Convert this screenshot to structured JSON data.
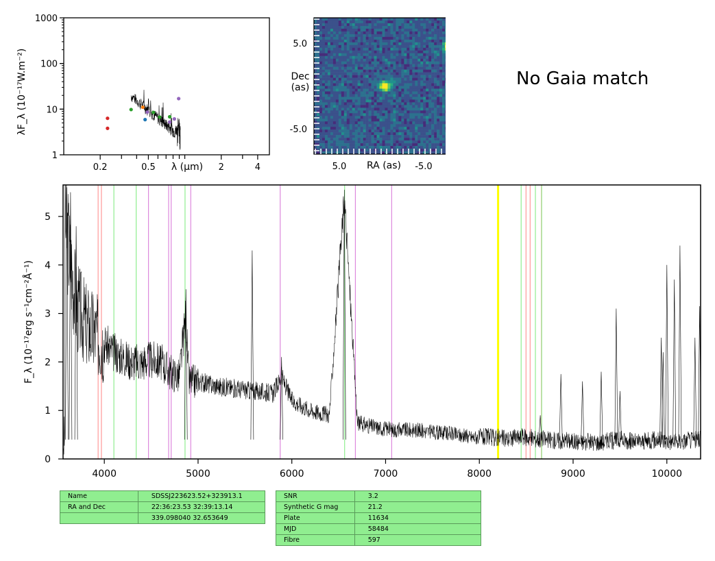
{
  "sed": {
    "ylabel": "λF_λ (10⁻¹⁷W.m⁻²)",
    "xlabel": "λ (μm)",
    "xticks": [
      {
        "v": 0.2,
        "label": "0.2"
      },
      {
        "v": 0.5,
        "label": "0.5"
      },
      {
        "v": 2,
        "label": "2"
      },
      {
        "v": 4,
        "label": "4"
      }
    ],
    "yticks": [
      {
        "v": 1,
        "label": "1"
      },
      {
        "v": 10,
        "label": "10"
      },
      {
        "v": 100,
        "label": "100"
      },
      {
        "v": 1000,
        "label": "1000"
      }
    ],
    "xlim": [
      0.1,
      5
    ],
    "ylim": [
      1,
      1000
    ],
    "log": true,
    "points": [
      {
        "x": 0.23,
        "y": 6.3,
        "color": "#d62728"
      },
      {
        "x": 0.23,
        "y": 3.8,
        "color": "#d62728"
      },
      {
        "x": 0.36,
        "y": 9.8,
        "color": "#2ca02c"
      },
      {
        "x": 0.45,
        "y": 11.0,
        "color": "#ff7f0e"
      },
      {
        "x": 0.49,
        "y": 8.6,
        "color": "#9467bd"
      },
      {
        "x": 0.47,
        "y": 5.9,
        "color": "#1f77b4"
      },
      {
        "x": 0.55,
        "y": 8.5,
        "color": "#2ca02c"
      },
      {
        "x": 0.62,
        "y": 6.7,
        "color": "#2ca02c"
      },
      {
        "x": 0.75,
        "y": 6.8,
        "color": "#2ca02c"
      },
      {
        "x": 0.75,
        "y": 5.2,
        "color": "#9467bd"
      },
      {
        "x": 0.82,
        "y": 6.1,
        "color": "#9467bd"
      },
      {
        "x": 0.89,
        "y": 17.0,
        "color": "#9467bd"
      }
    ]
  },
  "image_panel": {
    "xlabel": "RA (as)",
    "ylabel": "Dec\n(as)",
    "xticks": [
      "5.0",
      "-5.0"
    ],
    "yticks": [
      "5.0",
      "-5.0"
    ],
    "colormap": "viridis"
  },
  "gaia_text": "No Gaia match",
  "chart_data": {
    "type": "line",
    "xlabel": "",
    "ylabel": "F_λ (10⁻¹⁷erg s⁻¹cm⁻²Å⁻¹)",
    "xlim": [
      3560,
      10360
    ],
    "ylim": [
      0,
      5.65
    ],
    "xticks": [
      4000,
      5000,
      6000,
      7000,
      8000,
      9000,
      10000
    ],
    "yticks": [
      0,
      1,
      2,
      3,
      4,
      5
    ],
    "series": [
      {
        "x": [
          3580,
          3700,
          3800,
          3900,
          4000,
          4100,
          4200,
          4300,
          4400,
          4500,
          4600,
          4700,
          4800,
          4870,
          4900,
          5000,
          5200,
          5400,
          5600,
          5800,
          5890,
          6000,
          6200,
          6400,
          6560,
          6700,
          6900,
          7100,
          7300,
          7500,
          7700,
          7900,
          8100,
          8300,
          8500,
          8700,
          8900,
          9100,
          9300,
          9500,
          9700,
          9900,
          10100,
          10300
        ],
        "y": [
          5.0,
          3.2,
          2.8,
          2.6,
          2.4,
          2.2,
          2.1,
          2.0,
          2.0,
          2.05,
          2.0,
          1.8,
          1.7,
          3.0,
          1.6,
          1.6,
          1.5,
          1.45,
          1.4,
          1.35,
          1.7,
          1.2,
          1.0,
          0.9,
          5.4,
          0.75,
          0.65,
          0.6,
          0.6,
          0.55,
          0.52,
          0.45,
          0.45,
          0.42,
          0.45,
          0.4,
          0.38,
          0.35,
          0.35,
          0.4,
          0.35,
          0.4,
          0.35,
          0.4
        ]
      }
    ],
    "spikes": [
      [
        3600,
        5.6
      ],
      [
        3640,
        5.5
      ],
      [
        3700,
        4.8
      ],
      [
        4870,
        3.5
      ],
      [
        5577,
        4.3
      ],
      [
        5890,
        2.1
      ],
      [
        6560,
        5.55
      ],
      [
        9460,
        3.1
      ],
      [
        9940,
        2.5
      ],
      [
        9960,
        2.2
      ],
      [
        10000,
        4.0
      ],
      [
        10080,
        3.7
      ],
      [
        10140,
        4.4
      ],
      [
        10300,
        2.5
      ],
      [
        10350,
        3.15
      ],
      [
        8650,
        0.9
      ],
      [
        8870,
        1.75
      ],
      [
        9100,
        1.6
      ],
      [
        9300,
        1.8
      ],
      [
        9500,
        1.4
      ]
    ],
    "lines": [
      {
        "x": 3934,
        "color": "#ff9999"
      },
      {
        "x": 3969,
        "color": "#ff9999"
      },
      {
        "x": 4102,
        "color": "#90ee90"
      },
      {
        "x": 4340,
        "color": "#90ee90"
      },
      {
        "x": 4471,
        "color": "#dd88dd"
      },
      {
        "x": 4686,
        "color": "#dd88dd"
      },
      {
        "x": 4713,
        "color": "#dd88dd"
      },
      {
        "x": 4861,
        "color": "#90ee90"
      },
      {
        "x": 4922,
        "color": "#dd88dd"
      },
      {
        "x": 5876,
        "color": "#dd88dd"
      },
      {
        "x": 6563,
        "color": "#90ee90"
      },
      {
        "x": 6678,
        "color": "#dd88dd"
      },
      {
        "x": 7065,
        "color": "#dd88dd"
      },
      {
        "x": 8200,
        "color": "#ffff00",
        "width": 3
      },
      {
        "x": 8446,
        "color": "#90ee90"
      },
      {
        "x": 8498,
        "color": "#ff9999"
      },
      {
        "x": 8542,
        "color": "#ff9999"
      },
      {
        "x": 8598,
        "color": "#90ee90"
      },
      {
        "x": 8662,
        "color": "#ff9999"
      },
      {
        "x": 8665,
        "color": "#90ee90"
      }
    ]
  },
  "table1": [
    [
      "Name",
      "SDSSJ223623.52+323913.1"
    ],
    [
      "RA and Dec",
      "22:36:23.53    32:39:13.14"
    ],
    [
      "",
      "339.098040    32.653649"
    ]
  ],
  "table2": [
    [
      "SNR",
      "3.2"
    ],
    [
      "Synthetic G mag",
      "21.2"
    ],
    [
      "Plate",
      "11634"
    ],
    [
      "MJD",
      "58484"
    ],
    [
      "Fibre",
      "597"
    ]
  ]
}
